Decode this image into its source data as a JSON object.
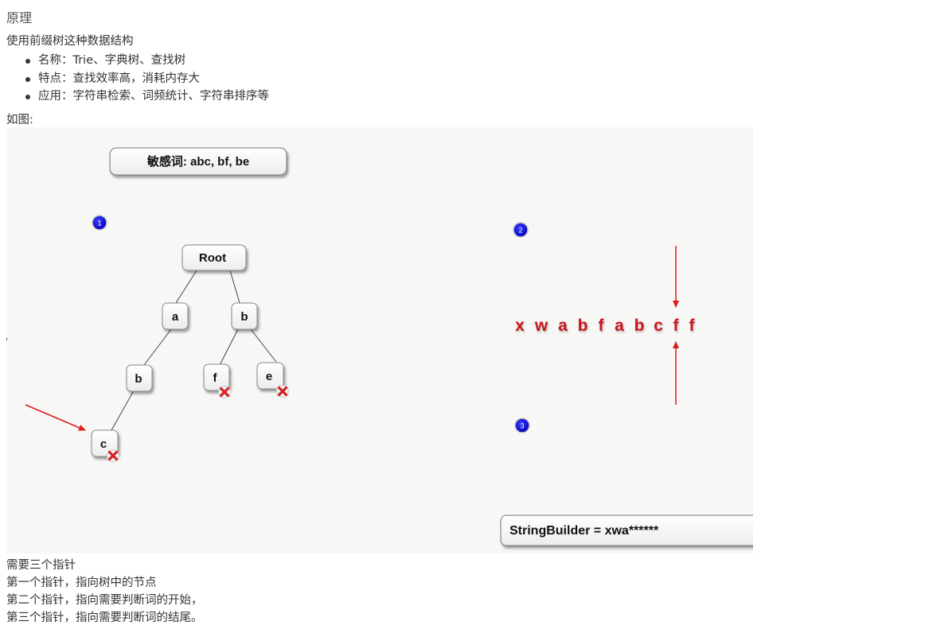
{
  "heading": "原理",
  "intro": "使用前缀树这种数据结构",
  "bullets": [
    "名称：Trie、字典树、查找树",
    "特点：查找效率高，消耗内存大",
    "应用：字符串检索、词频统计、字符串排序等"
  ],
  "as_figure": "如图:",
  "figure": {
    "sensitive_words": "敏感词: abc, bf, be",
    "tree": {
      "root": "Root",
      "a": "a",
      "b1": "b",
      "b2": "b",
      "f": "f",
      "e": "e",
      "c": "c"
    },
    "markers": [
      "1",
      "2",
      "3"
    ],
    "sequence": [
      "x",
      "w",
      "a",
      "b",
      "f",
      "a",
      "b",
      "c",
      "f",
      "f"
    ],
    "stringbuilder": "StringBuilder = xwa******",
    "colors": {
      "arrow": "#dd1a1a",
      "marker": "#1111cc",
      "seq_text": "#c8141c"
    }
  },
  "notes": [
    "需要三个指针",
    "第一个指针，指向树中的节点",
    "第二个指针，指向需要判断词的开始，",
    "第三个指针，指向需要判断词的结尾。"
  ]
}
